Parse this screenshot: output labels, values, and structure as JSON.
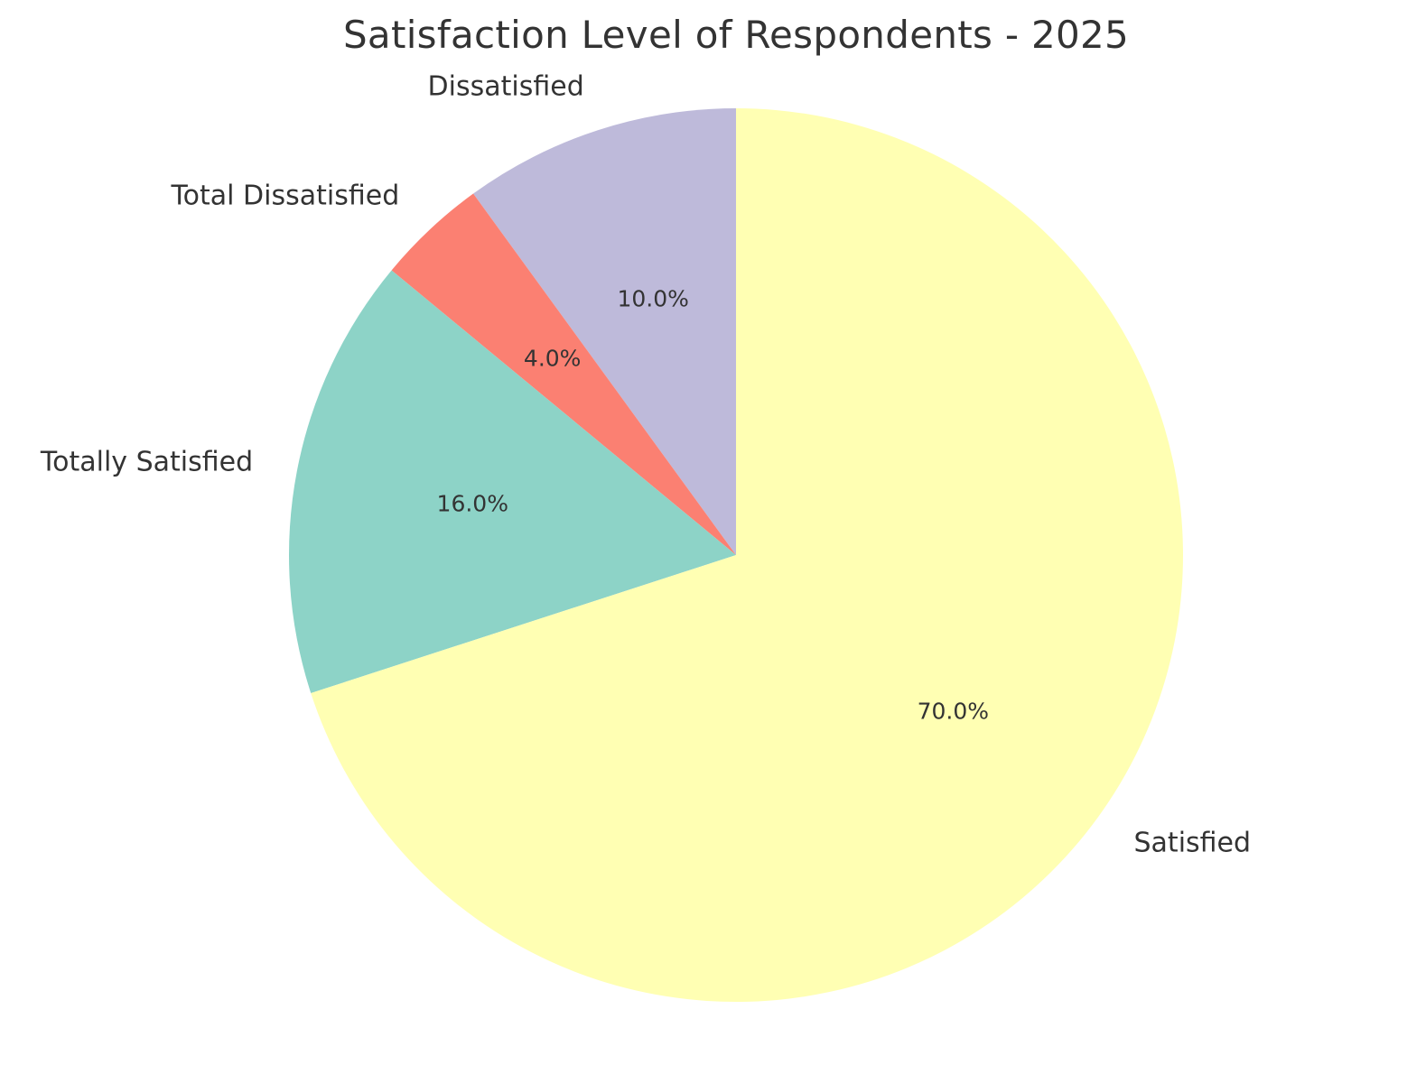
{
  "chart_data": {
    "type": "pie",
    "title": "Satisfaction Level of Respondents - 2025",
    "slices": [
      {
        "label": "Satisfied",
        "value": 70.0,
        "pct_label": "70.0%",
        "color": "#ffffb3"
      },
      {
        "label": "Totally Satisfied",
        "value": 16.0,
        "pct_label": "16.0%",
        "color": "#8dd3c7"
      },
      {
        "label": "Total Dissatisfied",
        "value": 4.0,
        "pct_label": "4.0%",
        "color": "#fb8072"
      },
      {
        "label": "Dissatisfied",
        "value": 10.0,
        "pct_label": "10.0%",
        "color": "#bebada"
      }
    ],
    "start_angle_deg": 90,
    "direction": "counterclockwise-from-dissatisfied",
    "legend": "none"
  }
}
